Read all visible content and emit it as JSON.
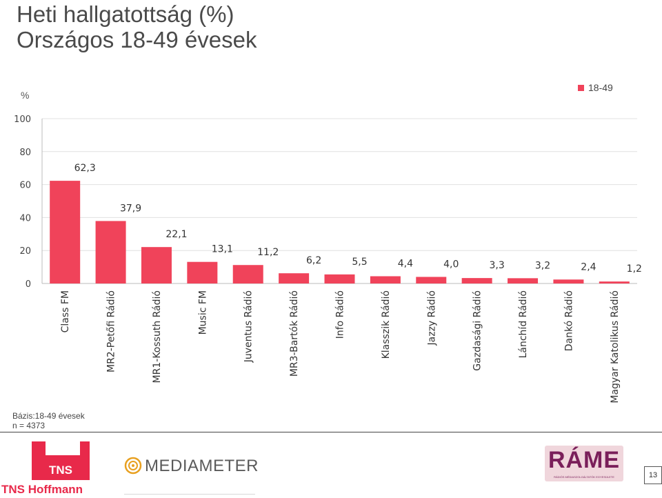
{
  "title": {
    "line1": "Heti hallgatottság (%)",
    "line2": "Országos 18-49 évesek"
  },
  "chart_data": {
    "type": "bar",
    "ylabel": "%",
    "ylim": [
      0,
      100
    ],
    "yticks": [
      0,
      20,
      40,
      60,
      80,
      100
    ],
    "grid": true,
    "legend_position": "top-right",
    "categories": [
      "Class FM",
      "MR2-Petőfi Rádió",
      "MR1-Kossuth Rádió",
      "Music FM",
      "Juventus Rádió",
      "MR3-Bartók Rádió",
      "Info Rádió",
      "Klasszik Rádió",
      "Jazzy Rádió",
      "Gazdasági Rádió",
      "Lánchíd Rádió",
      "Dankó Rádió",
      "Magyar Katolikus Rádió"
    ],
    "series": [
      {
        "name": "18-49",
        "color": "#f0435a",
        "values": [
          62.3,
          37.9,
          22.1,
          13.1,
          11.2,
          6.2,
          5.5,
          4.4,
          4.0,
          3.3,
          3.2,
          2.4,
          1.2
        ],
        "labels": [
          "62,3",
          "37,9",
          "22,1",
          "13,1",
          "11,2",
          "6,2",
          "5,5",
          "4,4",
          "4,0",
          "3,3",
          "3,2",
          "2,4",
          "1,2"
        ]
      }
    ]
  },
  "footnote": {
    "base": "Bázis:18-49 évesek",
    "n": "n = 4373"
  },
  "logos": {
    "tns_box": "TNS",
    "tns_name": "TNS Hoffmann",
    "mediameter": "MEDIAMETER",
    "rame": "RÁME",
    "rame_sub": "RÁDIÓS MÉDIASZOLGÁLTATÓK EGYESÜLETE"
  },
  "page_number": "13",
  "colors": {
    "bar": "#f0435a",
    "brand_red": "#e8294a",
    "rame_purple": "#7a1f5a"
  }
}
